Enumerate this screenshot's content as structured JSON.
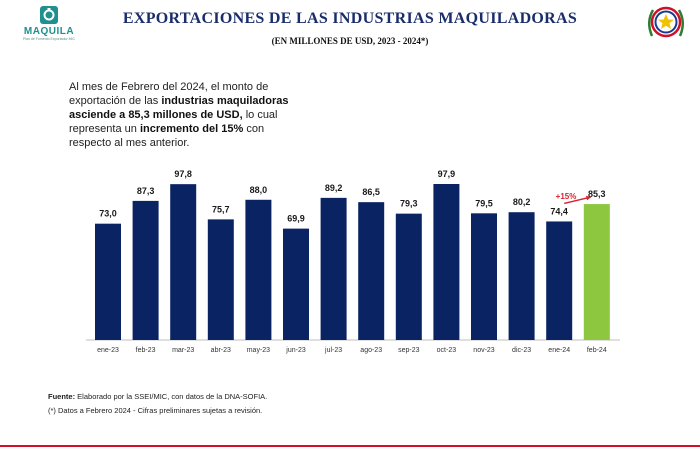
{
  "header": {
    "title": "EXPORTACIONES DE LAS INDUSTRIAS MAQUILADORAS",
    "subtitle": "(EN MILLONES DE USD, 2023 - 2024*)",
    "logo_text": "MAQUILA",
    "logo_subtext": "Plan de Fomento Exportador MIC"
  },
  "summary": {
    "p1": "Al mes de Febrero del 2024, el monto de exportación de las ",
    "b1": "industrias maquiladoras asciende a 85,3 millones de USD,",
    "p2": " lo cual representa un ",
    "b2": "incremento del 15%",
    "p3": " con respecto al mes anterior."
  },
  "chart_data": {
    "type": "bar",
    "categories": [
      "ene-23",
      "feb-23",
      "mar-23",
      "abr-23",
      "may-23",
      "jun-23",
      "jul-23",
      "ago-23",
      "sep-23",
      "oct-23",
      "nov-23",
      "dic-23",
      "ene-24",
      "feb-24"
    ],
    "values": [
      73.0,
      87.3,
      97.8,
      75.7,
      88.0,
      69.9,
      89.2,
      86.5,
      79.3,
      97.9,
      79.5,
      80.2,
      74.4,
      85.3
    ],
    "labels": [
      "73,0",
      "87,3",
      "97,8",
      "75,7",
      "88,0",
      "69,9",
      "89,2",
      "86,5",
      "79,3",
      "97,9",
      "79,5",
      "80,2",
      "74,4",
      "85,3"
    ],
    "title": "",
    "xlabel": "",
    "ylabel": "",
    "ylim": [
      0,
      100
    ],
    "highlight_index": 13,
    "bar_color": "#0a2463",
    "highlight_color": "#8dc63f",
    "annotation": {
      "text": "+15%",
      "color": "#d9202c",
      "from_index": 12,
      "to_index": 13
    }
  },
  "notes": {
    "source_label": "Fuente:",
    "source_text": " Elaborado por la SSEI/MIC, con datos de la DNA-SOFIA.",
    "footnote": "(*) Datos a Febrero 2024 - Cifras preliminares sujetas a revisión."
  },
  "colors": {
    "title": "#1a2d6b",
    "footer_line": "#d0102b"
  }
}
